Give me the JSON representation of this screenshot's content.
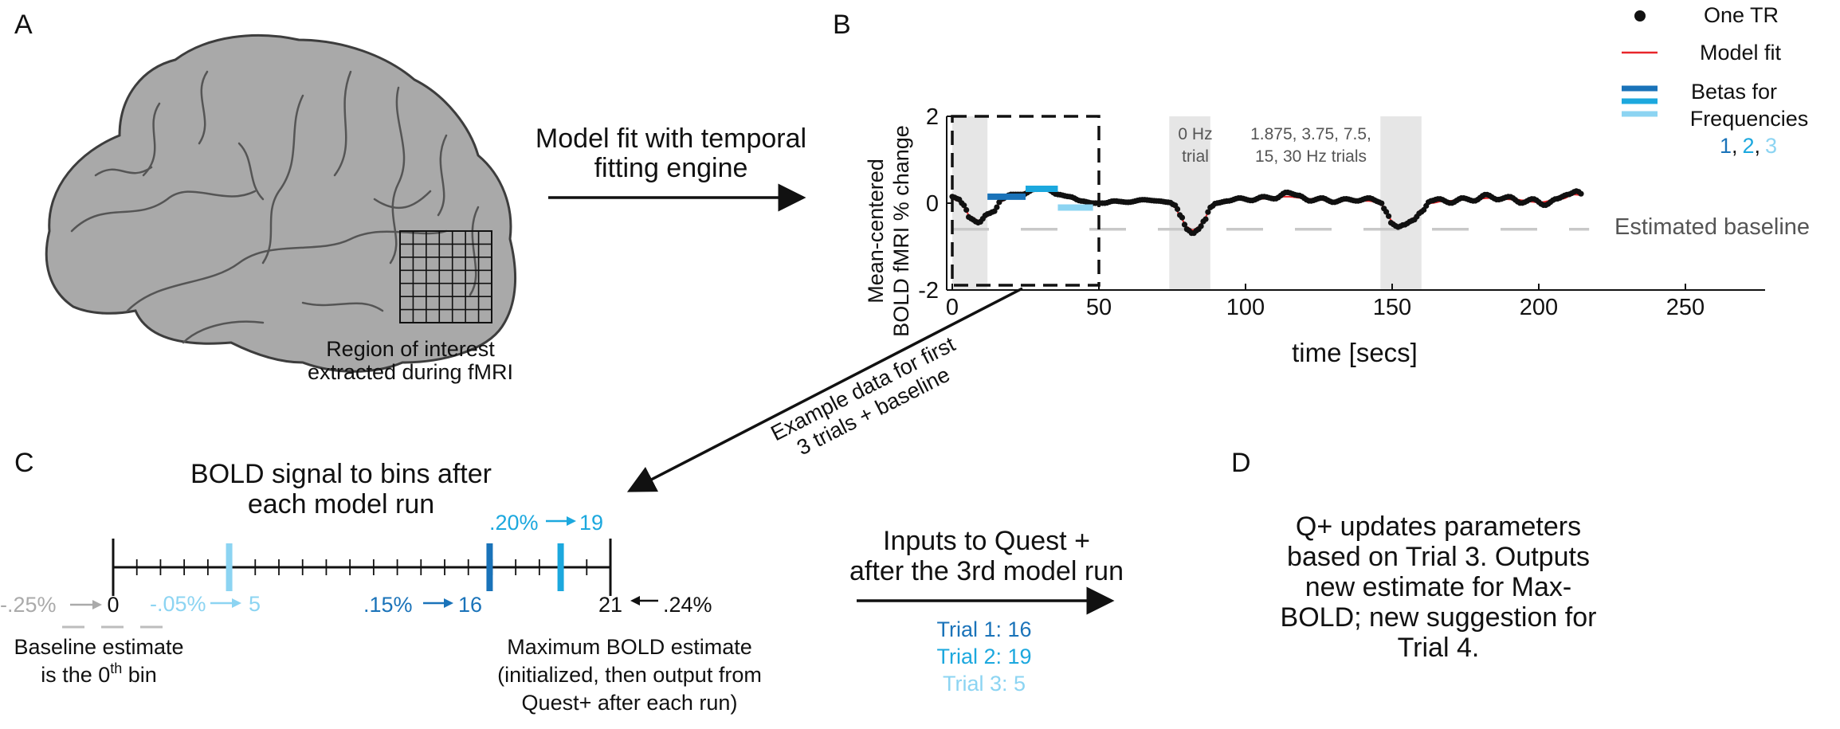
{
  "panels": {
    "a": "A",
    "b": "B",
    "c": "C",
    "d": "D"
  },
  "panel_a": {
    "roi_label": [
      "Region of interest",
      "extracted during fMRI"
    ]
  },
  "arrow_ab": {
    "label": [
      "Model fit with temporal",
      "fitting engine"
    ]
  },
  "panel_b": {
    "ylabel": [
      "Mean-centered",
      "BOLD fMRI % change"
    ],
    "xlabel": "time [secs]",
    "x_ticks": [
      "0",
      "50",
      "100",
      "150",
      "200",
      "250"
    ],
    "y_ticks": [
      "2",
      "0",
      "-2"
    ],
    "trial0_label": [
      "0 Hz",
      "trial"
    ],
    "trials_label": [
      "1.875, 3.75, 7.5,",
      "15, 30 Hz trials"
    ],
    "baseline_label": "Estimated baseline",
    "example_label": [
      "Example data for first",
      "3 trials + baseline"
    ],
    "legend": {
      "one_tr": "One TR",
      "model_fit": "Model fit",
      "betas": [
        "Betas for",
        "Frequencies"
      ],
      "freq_1": "1",
      "sep_1": ",",
      "freq_2": "2",
      "sep_2": ",",
      "freq_3": "3"
    },
    "colors": {
      "f1": "#1a73b9",
      "f2": "#1ca8de",
      "f3": "#8cd4f2",
      "fit": "#e8262a",
      "shade": "#e6e6e6",
      "baseline": "#c8c8c8"
    }
  },
  "panel_c": {
    "title": [
      "BOLD signal to bins after",
      "each model run"
    ],
    "start_bin": "0",
    "end_bin": "21",
    "left_pct": "-.25%",
    "right_pct": ".24%",
    "m1_pct": "-.05%",
    "m1_bin": "5",
    "m2_pct": ".15%",
    "m2_bin": "16",
    "m3_pct": ".20%",
    "m3_bin": "19",
    "baseline_text_1": "Baseline estimate",
    "baseline_text_2a": "is the 0",
    "baseline_text_sup": "th",
    "baseline_text_2b": " bin",
    "max_text": [
      "Maximum BOLD estimate",
      "(initialized, then output from",
      "Quest+ after each run)"
    ]
  },
  "quest_inputs": {
    "title": [
      "Inputs to Quest +",
      "after the 3rd model run"
    ],
    "trials": [
      "Trial 1: 16",
      "Trial 2: 19",
      "Trial 3: 5"
    ]
  },
  "panel_d": {
    "text": [
      "Q+ updates parameters",
      "based on Trial 3. Outputs",
      "new estimate for Max-",
      "BOLD; new suggestion for",
      "Trial 4."
    ]
  },
  "chart_data": {
    "type": "line",
    "xlabel": "time [secs]",
    "ylabel": "Mean-centered BOLD fMRI % change",
    "xlim": [
      0,
      270
    ],
    "ylim": [
      -2,
      2
    ],
    "x_ticks": [
      0,
      50,
      100,
      150,
      200,
      250
    ],
    "y_ticks": [
      -2,
      0,
      2
    ],
    "tr": 0.8,
    "series": [
      {
        "name": "Model fit",
        "keypoints": [
          [
            0,
            0.1
          ],
          [
            2,
            0.05
          ],
          [
            4,
            -0.1
          ],
          [
            6,
            -0.3
          ],
          [
            9,
            -0.4
          ],
          [
            12,
            -0.3
          ],
          [
            14,
            -0.15
          ],
          [
            17,
            0.05
          ],
          [
            20,
            0.18
          ],
          [
            24,
            0.22
          ],
          [
            28,
            0.28
          ],
          [
            32,
            0.3
          ],
          [
            36,
            0.24
          ],
          [
            40,
            0.12
          ],
          [
            44,
            0.02
          ],
          [
            48,
            -0.02
          ],
          [
            55,
            0.03
          ],
          [
            60,
            0.05
          ],
          [
            65,
            0.05
          ],
          [
            70,
            0.02
          ],
          [
            74,
            0
          ],
          [
            76,
            -0.1
          ],
          [
            78,
            -0.35
          ],
          [
            80,
            -0.55
          ],
          [
            82,
            -0.62
          ],
          [
            84,
            -0.55
          ],
          [
            86,
            -0.35
          ],
          [
            88,
            -0.12
          ],
          [
            92,
            0.05
          ],
          [
            98,
            0.08
          ],
          [
            106,
            0.1
          ],
          [
            114,
            0.15
          ],
          [
            122,
            0.1
          ],
          [
            130,
            0.05
          ],
          [
            138,
            0.06
          ],
          [
            142,
            0.05
          ],
          [
            146,
            0
          ],
          [
            148,
            -0.2
          ],
          [
            150,
            -0.42
          ],
          [
            152,
            -0.52
          ],
          [
            154,
            -0.5
          ],
          [
            157,
            -0.35
          ],
          [
            160,
            -0.15
          ],
          [
            163,
            0
          ],
          [
            168,
            0.05
          ],
          [
            176,
            0.08
          ],
          [
            184,
            0.12
          ],
          [
            192,
            0.08
          ],
          [
            200,
            0.02
          ],
          [
            208,
            0.1
          ],
          [
            212,
            0.2
          ],
          [
            215,
            0.18
          ]
        ]
      },
      {
        "name": "One TR",
        "keypoints": [
          [
            0,
            0.15
          ],
          [
            2,
            0.1
          ],
          [
            4,
            -0.05
          ],
          [
            6,
            -0.35
          ],
          [
            9,
            -0.45
          ],
          [
            12,
            -0.25
          ],
          [
            14,
            -0.2
          ],
          [
            17,
            0.1
          ],
          [
            20,
            0.2
          ],
          [
            24,
            0.2
          ],
          [
            28,
            0.32
          ],
          [
            32,
            0.33
          ],
          [
            36,
            0.2
          ],
          [
            40,
            0.15
          ],
          [
            44,
            0.05
          ],
          [
            48,
            0
          ],
          [
            52,
            0
          ],
          [
            55,
            0.05
          ],
          [
            60,
            0.02
          ],
          [
            65,
            0.08
          ],
          [
            70,
            0.05
          ],
          [
            74,
            0.02
          ],
          [
            76,
            -0.05
          ],
          [
            78,
            -0.3
          ],
          [
            80,
            -0.6
          ],
          [
            82,
            -0.7
          ],
          [
            84,
            -0.6
          ],
          [
            86,
            -0.4
          ],
          [
            88,
            -0.1
          ],
          [
            90,
            0
          ],
          [
            94,
            0.05
          ],
          [
            98,
            0.12
          ],
          [
            102,
            0.06
          ],
          [
            106,
            0.15
          ],
          [
            110,
            0.1
          ],
          [
            114,
            0.25
          ],
          [
            118,
            0.18
          ],
          [
            122,
            0.05
          ],
          [
            126,
            0.12
          ],
          [
            130,
            0.02
          ],
          [
            134,
            0.1
          ],
          [
            138,
            0.05
          ],
          [
            142,
            0.12
          ],
          [
            146,
            0.02
          ],
          [
            148,
            -0.2
          ],
          [
            150,
            -0.48
          ],
          [
            152,
            -0.55
          ],
          [
            154,
            -0.5
          ],
          [
            157,
            -0.4
          ],
          [
            160,
            -0.2
          ],
          [
            163,
            0.05
          ],
          [
            166,
            0.1
          ],
          [
            170,
            0
          ],
          [
            174,
            0.12
          ],
          [
            178,
            0.05
          ],
          [
            182,
            0.2
          ],
          [
            186,
            0.08
          ],
          [
            190,
            0.15
          ],
          [
            194,
            0
          ],
          [
            198,
            0.1
          ],
          [
            202,
            -0.05
          ],
          [
            206,
            0.1
          ],
          [
            210,
            0.2
          ],
          [
            213,
            0.28
          ],
          [
            215,
            0.2
          ]
        ]
      },
      {
        "name": "Betas for Frequencies",
        "segments": [
          {
            "frequency": 1,
            "x": [
              12,
              25
            ],
            "y": 0.15
          },
          {
            "frequency": 2,
            "x": [
              25,
              36
            ],
            "y": 0.33
          },
          {
            "frequency": 3,
            "x": [
              36,
              48
            ],
            "y": -0.1
          }
        ]
      },
      {
        "name": "Estimated baseline",
        "y": -0.6,
        "x": [
          0,
          215
        ]
      }
    ],
    "shaded_regions": [
      [
        0,
        12
      ],
      [
        74,
        88
      ],
      [
        146,
        160
      ]
    ],
    "annotations": [
      "0 Hz trial",
      "1.875, 3.75, 7.5, 15, 30 Hz trials",
      "Estimated baseline"
    ]
  },
  "icons": {
    "brain": "brain-illustration",
    "grid": "roi-grid-icon"
  }
}
